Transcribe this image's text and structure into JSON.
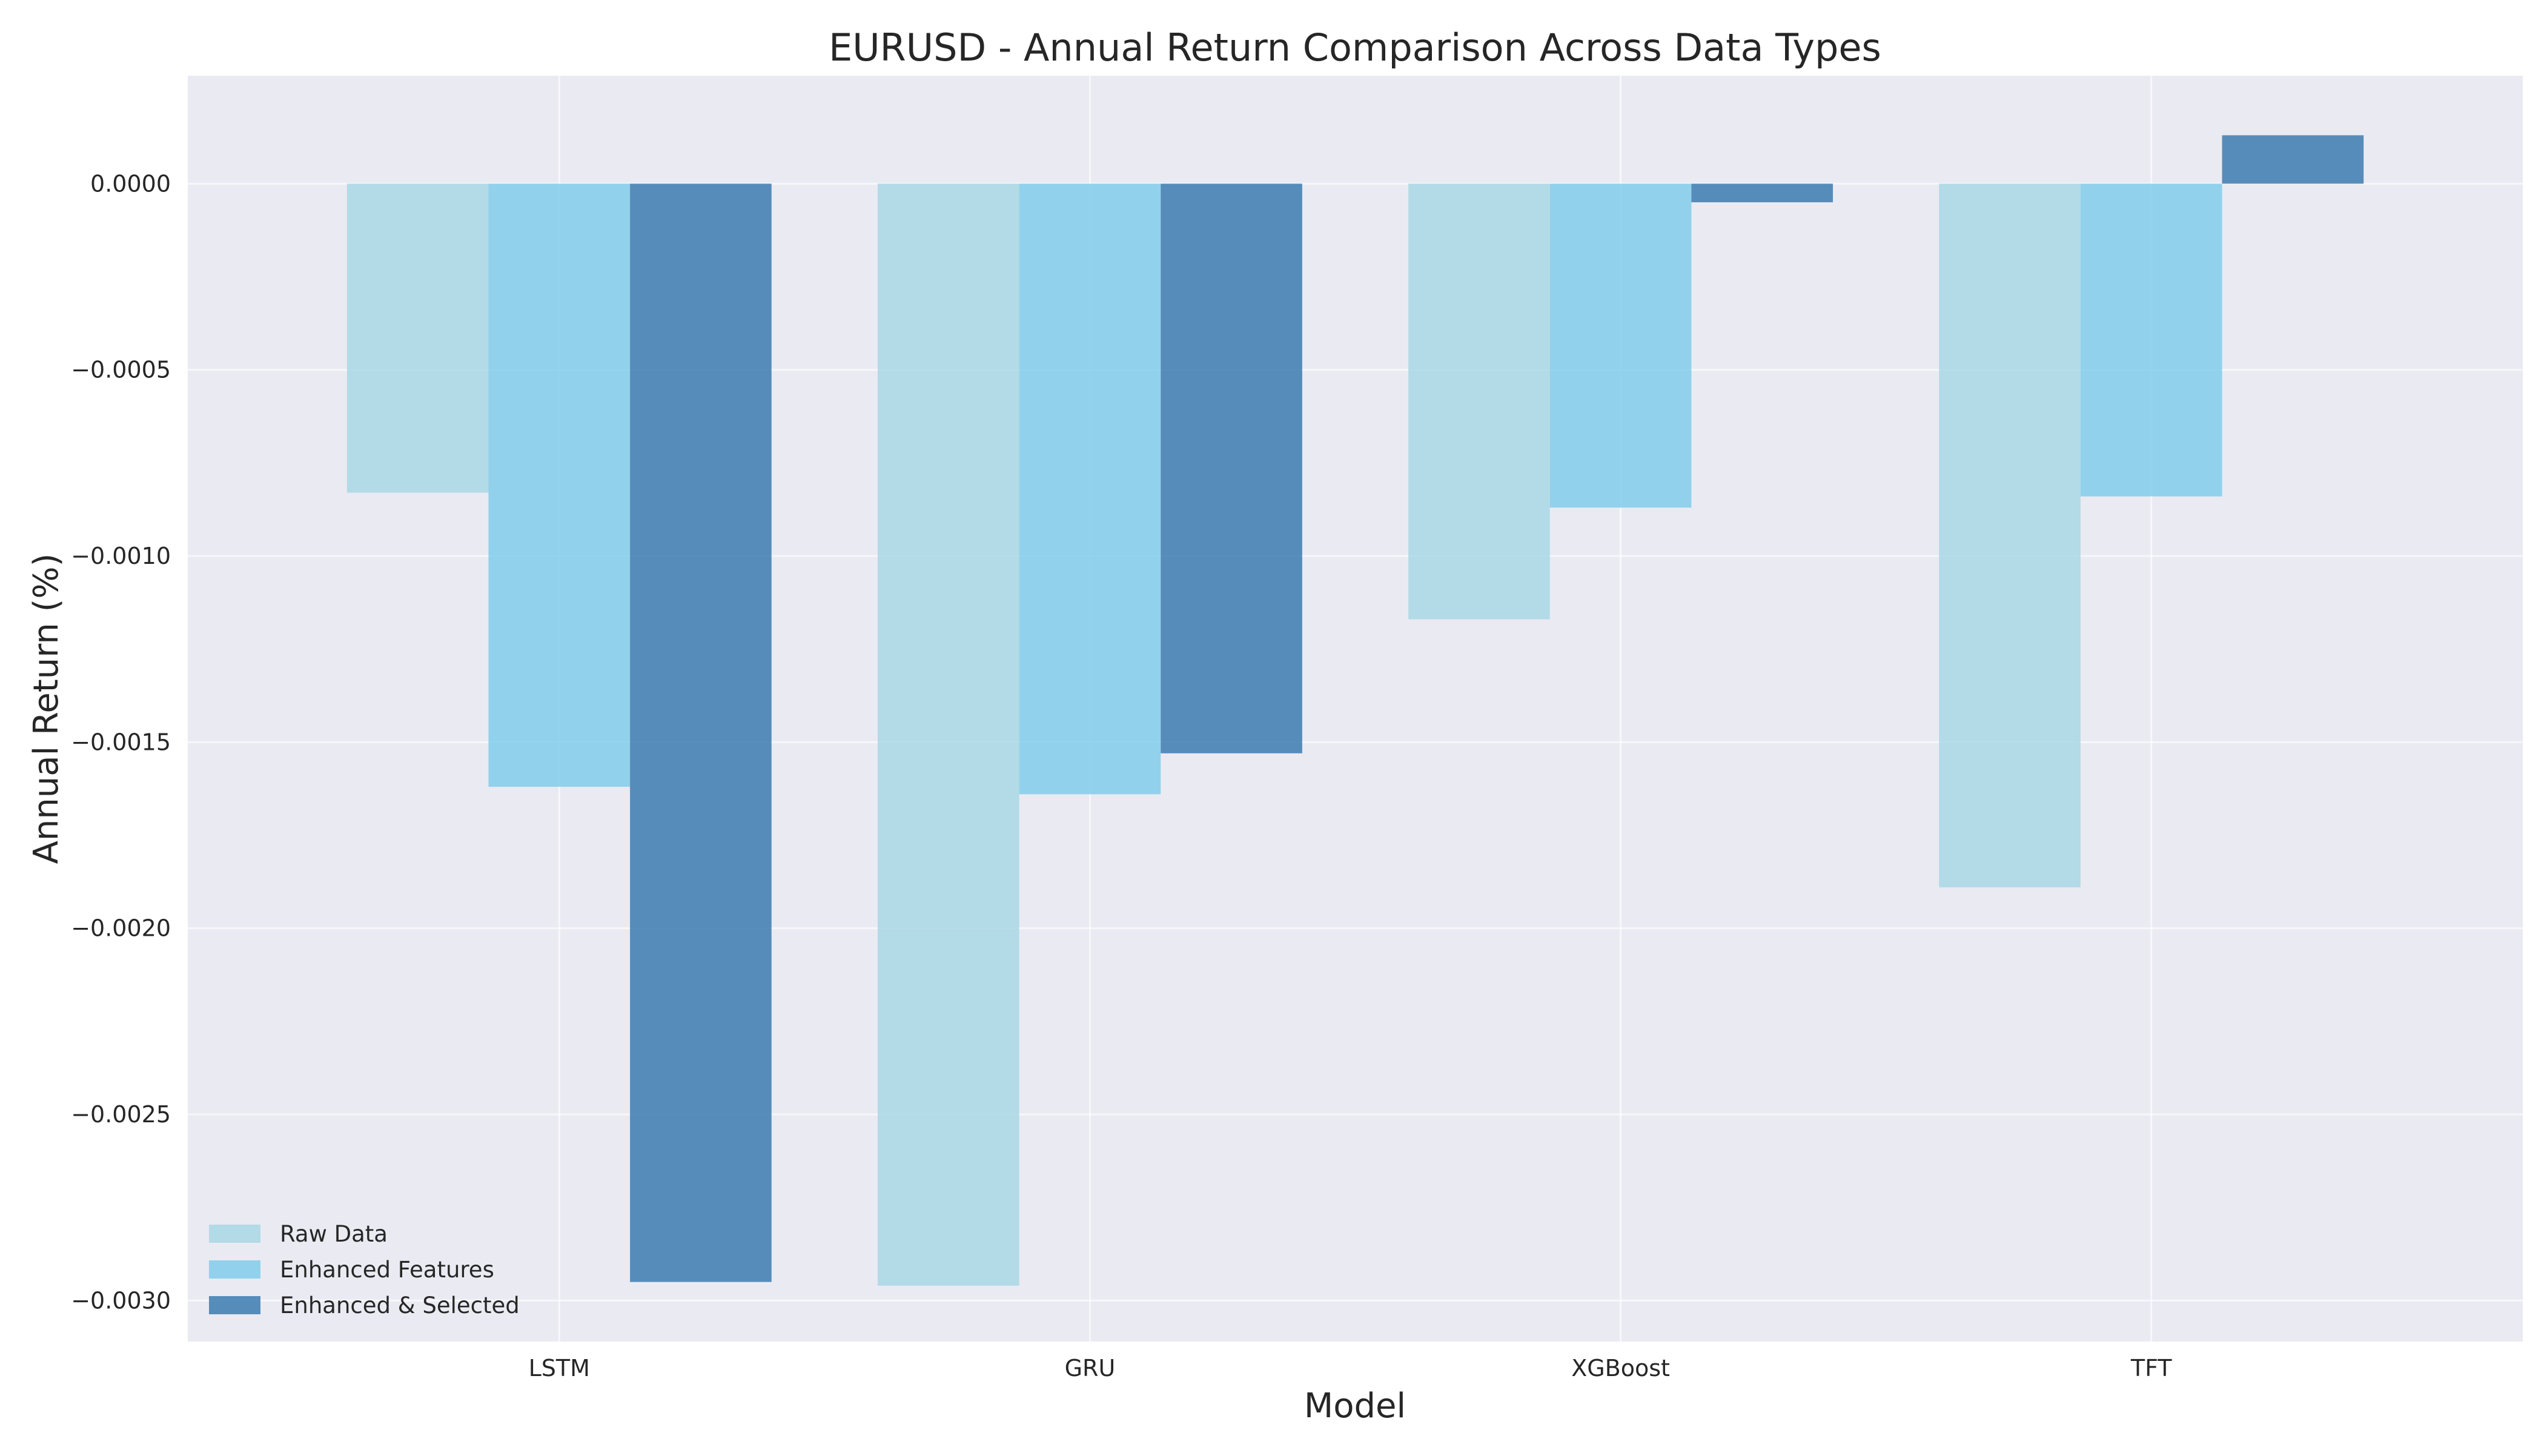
{
  "chart_data": {
    "type": "bar",
    "title": "EURUSD - Annual Return Comparison Across Data Types",
    "xlabel": "Model",
    "ylabel": "Annual Return (%)",
    "categories": [
      "LSTM",
      "GRU",
      "XGBoost",
      "TFT"
    ],
    "series": [
      {
        "name": "Raw Data",
        "color": "#add8e6",
        "values": [
          -0.00083,
          -0.00296,
          -0.00117,
          -0.00189
        ]
      },
      {
        "name": "Enhanced Features",
        "color": "#87ceeb",
        "values": [
          -0.00162,
          -0.00164,
          -0.00087,
          -0.00084
        ]
      },
      {
        "name": "Enhanced & Selected",
        "color": "#4682b4",
        "values": [
          -0.00295,
          -0.00153,
          -5e-05,
          0.00013
        ]
      }
    ],
    "ylim": [
      -0.00311,
      0.00029
    ],
    "yticks": [
      0.0,
      -0.0005,
      -0.001,
      -0.0015,
      -0.002,
      -0.0025,
      -0.003
    ],
    "ytick_labels": [
      "0.0000",
      "−0.0005",
      "−0.0010",
      "−0.0015",
      "−0.0020",
      "−0.0025",
      "−0.0030"
    ],
    "grid": true,
    "legend_position": "lower-left",
    "background_color": "#eaeaf2",
    "grid_color": "#ffffff"
  }
}
